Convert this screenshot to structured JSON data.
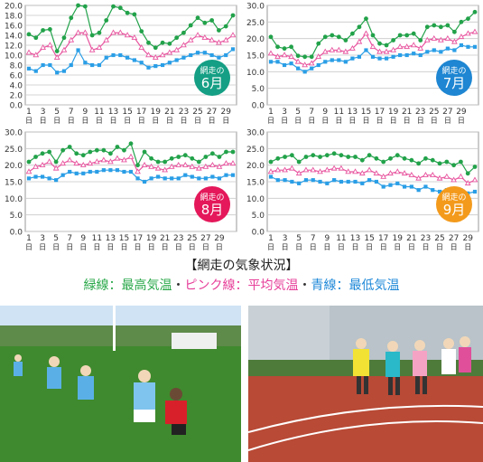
{
  "caption": {
    "title": "【網走の気象状況】",
    "legend": [
      {
        "text": "緑線：最高気温",
        "color": "#2aa84a"
      },
      {
        "text": "・",
        "color": "#333333"
      },
      {
        "text": "ピンク線：平均気温",
        "color": "#e7409a"
      },
      {
        "text": "・",
        "color": "#333333"
      },
      {
        "text": "青線：最低気温",
        "color": "#1e88d8"
      }
    ]
  },
  "colors": {
    "max": "#22a24a",
    "avg": "#e8559f",
    "min": "#2a9ee6",
    "badge_june": "#159f84",
    "badge_july": "#1e86d2",
    "badge_august": "#e4185a",
    "badge_september": "#f39a1c"
  },
  "photos": [
    {
      "name": "rugby-photo",
      "icon": "rugby-players"
    },
    {
      "name": "track-photo",
      "icon": "runners-on-track"
    }
  ],
  "chart_data": [
    {
      "type": "line",
      "badge": {
        "line1": "網走の",
        "line2": "6月",
        "color": "#159f84"
      },
      "x": [
        1,
        2,
        3,
        4,
        5,
        6,
        7,
        8,
        9,
        10,
        11,
        12,
        13,
        14,
        15,
        16,
        17,
        18,
        19,
        20,
        21,
        22,
        23,
        24,
        25,
        26,
        27,
        28,
        29,
        30
      ],
      "x_tick_labels": [
        "1",
        "3",
        "5",
        "7",
        "9",
        "11",
        "13",
        "15",
        "17",
        "19",
        "21",
        "23",
        "25",
        "27",
        "29"
      ],
      "x_tick_unit": "日",
      "ylim": [
        0,
        20
      ],
      "y_ticks": [
        "0.0",
        "2.0",
        "4.0",
        "6.0",
        "8.0",
        "10.0",
        "12.0",
        "14.0",
        "16.0",
        "18.0",
        "20.0"
      ],
      "grid": true,
      "series": [
        {
          "key": "max",
          "values": [
            14.2,
            13.5,
            15.0,
            15.2,
            10.8,
            13.5,
            17.5,
            20.0,
            19.8,
            14.0,
            14.5,
            17.0,
            19.8,
            19.5,
            18.5,
            18.2,
            14.8,
            12.5,
            11.5,
            12.5,
            12.3,
            13.5,
            14.5,
            16.0,
            17.5,
            16.5,
            17.0,
            15.0,
            15.8,
            18.0
          ]
        },
        {
          "key": "avg",
          "values": [
            10.5,
            10.0,
            11.5,
            12.0,
            9.5,
            11.0,
            13.0,
            14.5,
            14.5,
            11.0,
            11.5,
            13.0,
            14.5,
            14.5,
            14.0,
            13.5,
            11.5,
            10.0,
            9.5,
            10.0,
            10.5,
            11.0,
            12.0,
            13.0,
            14.0,
            13.5,
            13.0,
            12.5,
            13.0,
            14.0
          ]
        },
        {
          "key": "min",
          "values": [
            7.3,
            6.8,
            8.0,
            8.0,
            6.5,
            6.8,
            8.0,
            11.0,
            8.5,
            8.0,
            8.0,
            9.5,
            10.0,
            10.0,
            9.5,
            9.0,
            8.5,
            7.5,
            7.8,
            8.0,
            8.5,
            9.0,
            9.5,
            10.0,
            10.5,
            10.5,
            10.0,
            9.5,
            10.0,
            11.2
          ]
        }
      ]
    },
    {
      "type": "line",
      "badge": {
        "line1": "網走の",
        "line2": "7月",
        "color": "#1e86d2"
      },
      "x": [
        1,
        2,
        3,
        4,
        5,
        6,
        7,
        8,
        9,
        10,
        11,
        12,
        13,
        14,
        15,
        16,
        17,
        18,
        19,
        20,
        21,
        22,
        23,
        24,
        25,
        26,
        27,
        28,
        29,
        30,
        31
      ],
      "x_tick_labels": [
        "1",
        "3",
        "5",
        "7",
        "9",
        "11",
        "13",
        "15",
        "17",
        "19",
        "21",
        "23",
        "25",
        "27",
        "29"
      ],
      "x_tick_unit": "日",
      "ylim": [
        0,
        30
      ],
      "y_ticks": [
        "0.0",
        "5.0",
        "10.0",
        "15.0",
        "20.0",
        "25.0",
        "30.0"
      ],
      "grid": true,
      "series": [
        {
          "key": "max",
          "values": [
            20.5,
            17.5,
            17.0,
            17.5,
            14.8,
            14.5,
            14.5,
            18.5,
            20.5,
            21.0,
            20.5,
            19.5,
            21.5,
            23.5,
            26.0,
            21.0,
            18.5,
            18.0,
            19.5,
            21.0,
            21.0,
            21.5,
            19.5,
            23.5,
            24.0,
            23.5,
            24.0,
            22.0,
            25.0,
            26.0,
            28.0
          ]
        },
        {
          "key": "avg",
          "values": [
            15.5,
            14.5,
            15.0,
            14.5,
            13.0,
            12.0,
            12.5,
            14.5,
            16.0,
            16.5,
            16.5,
            16.0,
            17.0,
            19.0,
            21.5,
            17.5,
            16.0,
            16.0,
            16.5,
            17.5,
            17.5,
            18.0,
            17.0,
            19.5,
            20.0,
            19.5,
            20.0,
            19.0,
            20.5,
            21.5,
            22.0
          ]
        },
        {
          "key": "min",
          "values": [
            13.0,
            13.0,
            12.0,
            12.5,
            11.0,
            10.0,
            11.0,
            12.0,
            13.0,
            13.5,
            13.5,
            13.0,
            14.0,
            14.5,
            16.5,
            14.5,
            14.0,
            14.0,
            14.5,
            15.0,
            15.0,
            15.5,
            15.0,
            16.0,
            16.5,
            16.0,
            17.0,
            16.5,
            18.0,
            17.5,
            17.5
          ]
        }
      ]
    },
    {
      "type": "line",
      "badge": {
        "line1": "網走の",
        "line2": "8月",
        "color": "#e4185a"
      },
      "x": [
        1,
        2,
        3,
        4,
        5,
        6,
        7,
        8,
        9,
        10,
        11,
        12,
        13,
        14,
        15,
        16,
        17,
        18,
        19,
        20,
        21,
        22,
        23,
        24,
        25,
        26,
        27,
        28,
        29,
        30,
        31
      ],
      "x_tick_labels": [
        "1",
        "3",
        "5",
        "7",
        "9",
        "11",
        "13",
        "15",
        "17",
        "19",
        "21",
        "23",
        "25",
        "27",
        "29"
      ],
      "x_tick_unit": "日",
      "ylim": [
        0,
        30
      ],
      "y_ticks": [
        "0.0",
        "5.0",
        "10.0",
        "15.0",
        "20.0",
        "25.0",
        "30.0"
      ],
      "grid": true,
      "series": [
        {
          "key": "max",
          "values": [
            21.0,
            22.5,
            23.5,
            24.0,
            21.0,
            24.5,
            25.5,
            23.5,
            23.0,
            24.0,
            24.5,
            24.5,
            23.5,
            25.5,
            24.5,
            26.5,
            20.0,
            24.0,
            22.0,
            21.0,
            21.0,
            22.0,
            22.5,
            23.0,
            22.0,
            21.0,
            22.5,
            23.5,
            22.5,
            24.0,
            24.0
          ]
        },
        {
          "key": "avg",
          "values": [
            18.0,
            19.5,
            20.0,
            21.0,
            19.0,
            20.5,
            21.5,
            20.5,
            20.0,
            20.5,
            21.0,
            21.5,
            21.0,
            22.0,
            21.5,
            22.5,
            18.0,
            20.0,
            19.5,
            19.0,
            18.5,
            19.5,
            20.0,
            20.0,
            19.5,
            19.0,
            19.5,
            20.0,
            19.5,
            20.5,
            20.5
          ]
        },
        {
          "key": "min",
          "values": [
            16.0,
            16.5,
            16.5,
            16.0,
            15.5,
            17.0,
            18.0,
            17.5,
            17.5,
            18.0,
            18.0,
            18.5,
            18.5,
            18.5,
            18.0,
            18.0,
            16.0,
            15.0,
            16.0,
            16.5,
            16.0,
            16.0,
            16.0,
            17.0,
            16.5,
            16.0,
            16.0,
            16.5,
            16.0,
            17.0,
            17.0
          ]
        }
      ]
    },
    {
      "type": "line",
      "badge": {
        "line1": "網走の",
        "line2": "9月",
        "color": "#f39a1c"
      },
      "x": [
        1,
        2,
        3,
        4,
        5,
        6,
        7,
        8,
        9,
        10,
        11,
        12,
        13,
        14,
        15,
        16,
        17,
        18,
        19,
        20,
        21,
        22,
        23,
        24,
        25,
        26,
        27,
        28,
        29,
        30
      ],
      "x_tick_labels": [
        "1",
        "3",
        "5",
        "7",
        "9",
        "11",
        "13",
        "15",
        "17",
        "19",
        "21",
        "23",
        "25",
        "27",
        "29"
      ],
      "x_tick_unit": "日",
      "ylim": [
        0,
        30
      ],
      "y_ticks": [
        "0.0",
        "5.0",
        "10.0",
        "15.0",
        "20.0",
        "25.0",
        "30.0"
      ],
      "grid": true,
      "series": [
        {
          "key": "max",
          "values": [
            21.0,
            22.0,
            22.5,
            23.0,
            21.0,
            22.5,
            23.0,
            22.5,
            23.0,
            23.5,
            23.0,
            22.5,
            22.5,
            21.5,
            23.0,
            22.0,
            21.0,
            22.0,
            23.0,
            22.0,
            21.5,
            20.5,
            22.0,
            21.5,
            20.5,
            21.0,
            20.0,
            21.0,
            17.5,
            19.5
          ]
        },
        {
          "key": "avg",
          "values": [
            18.0,
            18.5,
            18.5,
            19.0,
            17.5,
            18.5,
            18.5,
            18.0,
            18.5,
            19.0,
            19.0,
            18.0,
            18.0,
            17.5,
            18.5,
            17.5,
            16.5,
            17.5,
            18.0,
            17.5,
            17.0,
            16.0,
            17.0,
            17.0,
            16.0,
            16.5,
            15.5,
            16.5,
            14.5,
            15.5
          ]
        },
        {
          "key": "min",
          "values": [
            16.5,
            15.5,
            15.5,
            15.0,
            14.5,
            15.5,
            15.5,
            15.0,
            14.5,
            15.5,
            15.0,
            15.0,
            15.0,
            14.5,
            15.5,
            15.0,
            13.5,
            14.0,
            14.5,
            13.5,
            13.5,
            12.5,
            13.5,
            12.5,
            12.0,
            12.5,
            12.0,
            12.5,
            11.5,
            12.0
          ]
        }
      ]
    }
  ]
}
